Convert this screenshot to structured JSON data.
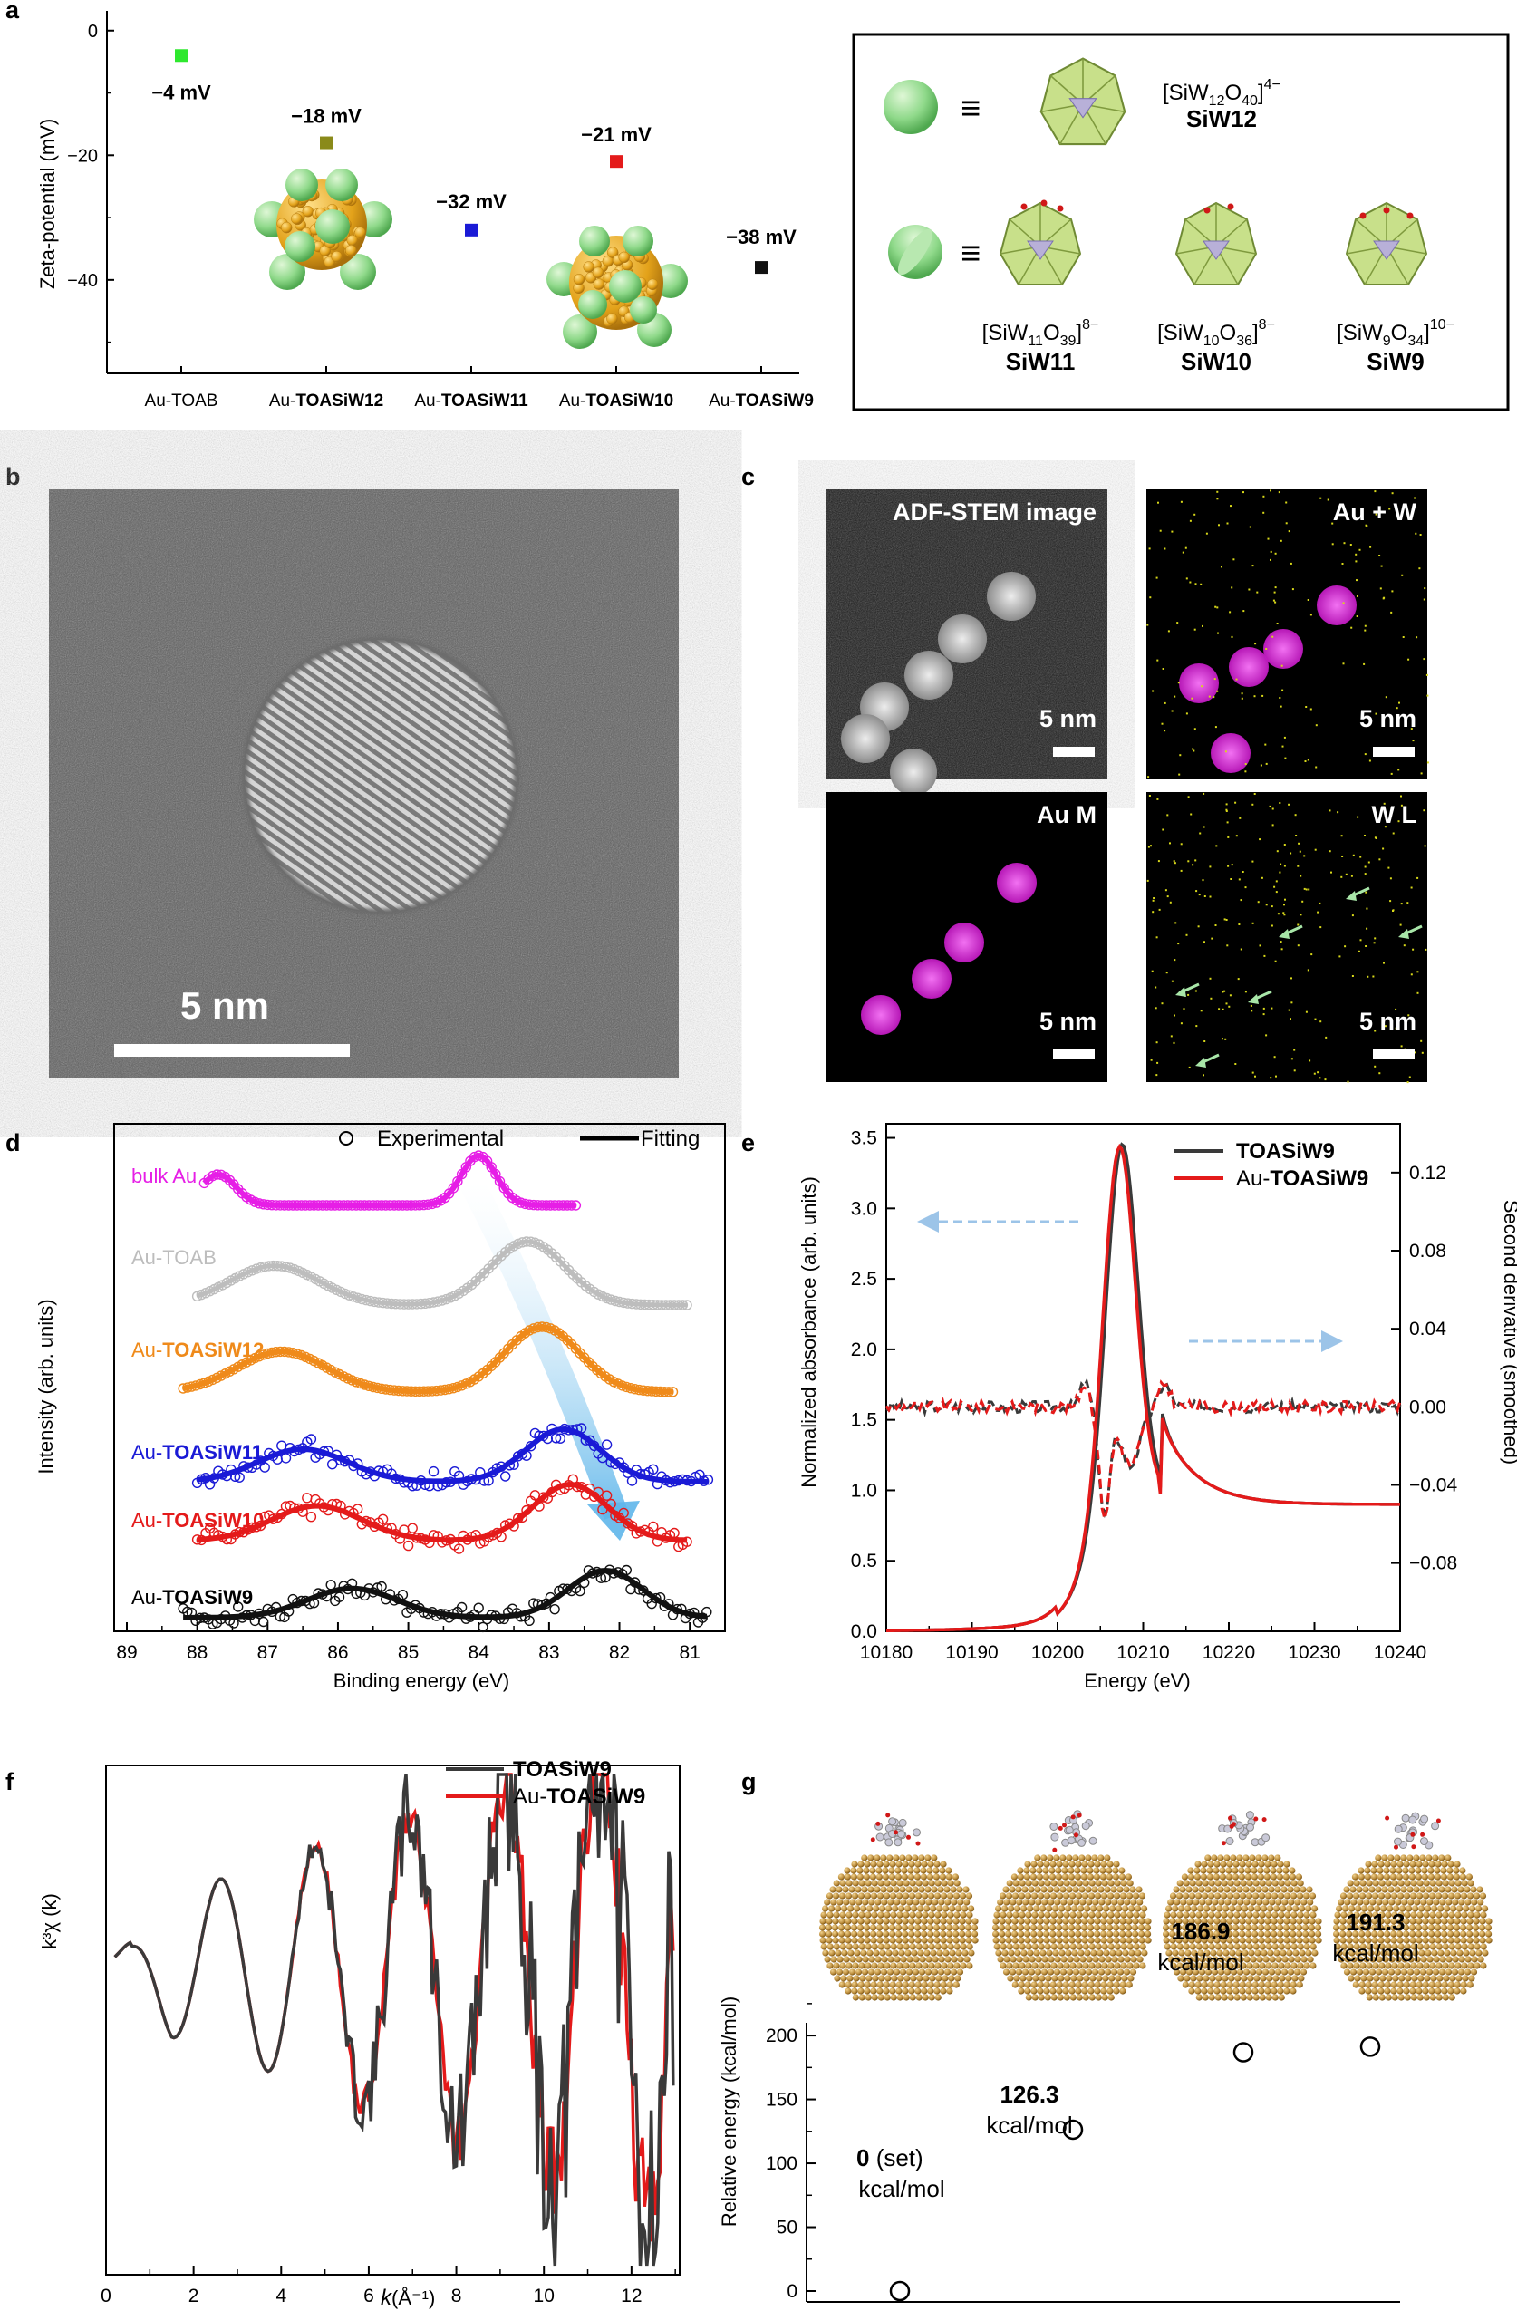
{
  "colors": {
    "magenta": "#e61ee6",
    "gray": "#bdbdbd",
    "orange": "#ef8a1a",
    "blue": "#1a1ad6",
    "red": "#e41a1a",
    "black": "#111111",
    "dark": "#3a3a3a",
    "green": "#2ee82e",
    "olive": "#8a8a1a",
    "arrow_blue": "#9cc4e8",
    "poly": "#c8e08a",
    "sphere": "#7ed37e",
    "gold": "#e3a21a"
  },
  "panel_a": {
    "label": "a",
    "ylabel": "Zeta-potential (mV)",
    "yticks": [
      "0",
      "−20",
      "−40"
    ],
    "ylim": [
      -55,
      2
    ],
    "categories": [
      "Au-TOAB",
      "Au-TOASiW12",
      "Au-TOASiW11",
      "Au-TOASiW10",
      "Au-TOASiW9"
    ],
    "cat_prefix": [
      "Au-",
      "Au-",
      "Au-",
      "Au-",
      "Au-"
    ],
    "cat_bold": [
      "TOAB",
      "TOASiW12",
      "TOASiW11",
      "TOASiW10",
      "TOASiW9"
    ],
    "values": [
      -4,
      -18,
      -32,
      -21,
      -38
    ],
    "value_labels": [
      "−4 mV",
      "−18 mV",
      "−32 mV",
      "−21 mV",
      "−38 mV"
    ],
    "legend": {
      "equiv": "≡",
      "rows": [
        {
          "formula_main": "[SiW",
          "sub1": "12",
          "mid": "O",
          "sub2": "40",
          "end": "]",
          "charge": "4−",
          "name": "SiW12"
        },
        {
          "formula_main": "[SiW",
          "sub1": "11",
          "mid": "O",
          "sub2": "39",
          "end": "]",
          "charge": "8−",
          "name": "SiW11"
        },
        {
          "formula_main": "[SiW",
          "sub1": "10",
          "mid": "O",
          "sub2": "36",
          "end": "]",
          "charge": "8−",
          "name": "SiW10"
        },
        {
          "formula_main": "[SiW",
          "sub1": "9",
          "mid": "O",
          "sub2": "34",
          "end": "]",
          "charge": "10−",
          "name": "SiW9"
        }
      ]
    }
  },
  "panel_b": {
    "label": "b",
    "scale": "5 nm"
  },
  "panel_c": {
    "label": "c",
    "tiles": [
      {
        "title": "ADF-STEM image",
        "scale": "5 nm"
      },
      {
        "title": "Au + W",
        "scale": "5 nm"
      },
      {
        "title": "Au M",
        "scale": "5 nm"
      },
      {
        "title": "W L",
        "scale": "5 nm"
      }
    ]
  },
  "panel_d": {
    "label": "d",
    "ylabel": "Intensity (arb. units)",
    "xlabel": "Binding energy (eV)",
    "xticks": [
      "89",
      "88",
      "87",
      "86",
      "85",
      "84",
      "83",
      "82",
      "81"
    ],
    "legend": [
      "Experimental",
      "Fitting"
    ],
    "series": [
      {
        "prefix": "bulk Au",
        "bold": "",
        "peaks": [
          87.7,
          84.0
        ]
      },
      {
        "prefix": "Au-",
        "bold": "",
        "plain2": "TOAB",
        "peaks": [
          86.9,
          83.3
        ]
      },
      {
        "prefix": "Au-",
        "bold": "TOASiW12",
        "peaks": [
          86.8,
          83.1
        ]
      },
      {
        "prefix": "Au-",
        "bold": "TOASiW11",
        "peaks": [
          86.5,
          82.8
        ]
      },
      {
        "prefix": "Au-",
        "bold": "TOASiW10",
        "peaks": [
          86.3,
          82.7
        ]
      },
      {
        "prefix": "Au-",
        "bold": "TOASiW9",
        "peaks": [
          85.8,
          82.2
        ]
      }
    ]
  },
  "panel_e": {
    "label": "e",
    "ylabel_left": "Normalized absorbance (arb. units)",
    "ylabel_right": "Second derivative (smoothed)",
    "xlabel": "Energy (eV)",
    "xticks": [
      "10180",
      "10190",
      "10200",
      "10210",
      "10220",
      "10230",
      "10240"
    ],
    "yticks_left": [
      "0.0",
      "0.5",
      "1.0",
      "1.5",
      "2.0",
      "2.5",
      "3.0",
      "3.5"
    ],
    "yticks_right": [
      "−0.08",
      "−0.04",
      "0.00",
      "0.04",
      "0.08",
      "0.12"
    ],
    "legend": [
      {
        "bold": "TOASiW9",
        "prefix": ""
      },
      {
        "prefix": "Au-",
        "bold": "TOASiW9"
      }
    ]
  },
  "panel_f": {
    "label": "f",
    "ylabel": "k³χ (k)",
    "xlabel_k": "k",
    "xlabel_unit": " (Å⁻¹)",
    "xticks": [
      "0",
      "2",
      "4",
      "6",
      "8",
      "10",
      "12"
    ],
    "legend": [
      {
        "bold": "TOASiW9",
        "prefix": ""
      },
      {
        "prefix": "Au-",
        "bold": "TOASiW9"
      }
    ]
  },
  "panel_g": {
    "label": "g",
    "ylabel": "Relative energy (kcal/mol)",
    "yticks": [
      "0",
      "50",
      "100",
      "150",
      "200"
    ],
    "values": [
      0,
      126.3,
      186.9,
      191.3
    ],
    "value_labels": [
      "0",
      "126.3",
      "186.9",
      "191.3"
    ],
    "set_note": " (set)",
    "unit": "kcal/mol"
  }
}
